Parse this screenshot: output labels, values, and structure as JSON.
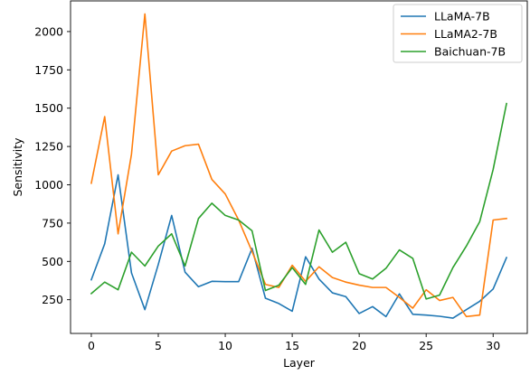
{
  "chart_data": {
    "type": "line",
    "title": "",
    "xlabel": "Layer",
    "ylabel": "Sensitivity",
    "xlim": [
      -1.55,
      32.55
    ],
    "ylim": [
      30,
      2200
    ],
    "xticks": [
      0,
      5,
      10,
      15,
      20,
      25,
      30
    ],
    "xtick_labels": [
      "0",
      "5",
      "10",
      "15",
      "20",
      "25",
      "30"
    ],
    "yticks": [
      250,
      500,
      750,
      1000,
      1250,
      1500,
      1750,
      2000
    ],
    "ytick_labels": [
      "250",
      "500",
      "750",
      "1000",
      "1250",
      "1500",
      "1750",
      "2000"
    ],
    "grid": false,
    "legend_position": "top-right",
    "x": [
      0,
      1,
      2,
      3,
      4,
      5,
      6,
      7,
      8,
      9,
      10,
      11,
      12,
      13,
      14,
      15,
      16,
      17,
      18,
      19,
      20,
      21,
      22,
      23,
      24,
      25,
      26,
      27,
      28,
      29,
      30,
      31
    ],
    "series": [
      {
        "name": "LLaMA-7B",
        "color": "#1f77b4",
        "values": [
          380,
          615,
          1065,
          425,
          185,
          480,
          800,
          430,
          335,
          370,
          368,
          368,
          585,
          260,
          225,
          175,
          530,
          385,
          295,
          270,
          160,
          205,
          140,
          288,
          155,
          150,
          142,
          130,
          185,
          240,
          320,
          525
        ]
      },
      {
        "name": "LLaMA2-7B",
        "color": "#ff7f0e",
        "values": [
          1010,
          1445,
          680,
          1200,
          2115,
          1065,
          1220,
          1255,
          1265,
          1035,
          940,
          770,
          565,
          350,
          330,
          475,
          370,
          465,
          395,
          365,
          345,
          330,
          330,
          265,
          195,
          315,
          245,
          265,
          140,
          150,
          770,
          780
        ]
      },
      {
        "name": "Baichuan-7B",
        "color": "#2ca02c",
        "values": [
          290,
          365,
          315,
          560,
          470,
          600,
          680,
          470,
          780,
          880,
          800,
          770,
          700,
          310,
          345,
          460,
          350,
          705,
          560,
          625,
          420,
          385,
          455,
          575,
          520,
          255,
          280,
          460,
          600,
          760,
          1100,
          1530
        ]
      }
    ]
  }
}
